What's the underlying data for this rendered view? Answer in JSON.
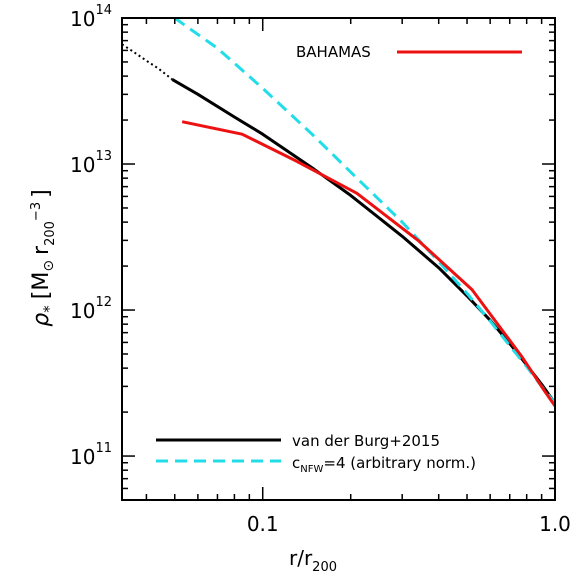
{
  "chart_data": {
    "type": "line",
    "xlabel": {
      "main": "r/r",
      "sub": "200"
    },
    "ylabel": {
      "rho": "ρ",
      "star": "*",
      "bracket_open": "[M",
      "sun": "⊙",
      "r": "r",
      "r_sub": "200",
      "exp": "−3",
      "bracket_close": "]"
    },
    "xscale": "log",
    "yscale": "log",
    "xlim": [
      0.033,
      1.0
    ],
    "ylim": [
      50000000000.0,
      100000000000000.0
    ],
    "xticks": [
      {
        "value": 0.1,
        "label": "0.1"
      },
      {
        "value": 1.0,
        "label": "1.0"
      }
    ],
    "yticks": [
      {
        "value": 100000000000.0,
        "base": "10",
        "exp": "11"
      },
      {
        "value": 1000000000000.0,
        "base": "10",
        "exp": "12"
      },
      {
        "value": 10000000000000.0,
        "base": "10",
        "exp": "13"
      },
      {
        "value": 100000000000000.0,
        "base": "10",
        "exp": "14"
      }
    ],
    "series": [
      {
        "key": "vdb_extrap",
        "color": "#000000",
        "style": "dotted",
        "x": [
          0.033,
          0.036,
          0.04,
          0.044,
          0.049
        ],
        "y": [
          66000000000000.0,
          59000000000000.0,
          51000000000000.0,
          45000000000000.0,
          38000000000000.0
        ]
      },
      {
        "key": "vdb",
        "color": "#000000",
        "style": "solid",
        "x": [
          0.049,
          0.06,
          0.08,
          0.1,
          0.15,
          0.2,
          0.3,
          0.4,
          0.5,
          0.6,
          0.7,
          0.8,
          0.9,
          1.0
        ],
        "y": [
          38000000000000.0,
          30000000000000.0,
          21000000000000.0,
          16000000000000.0,
          9200000000000.0,
          6100000000000.0,
          3200000000000.0,
          1950000000000.0,
          1250000000000.0,
          850000000000.0,
          590000000000.0,
          420000000000.0,
          310000000000.0,
          230000000000.0
        ]
      },
      {
        "key": "nfw",
        "color": "#22dde8",
        "style": "dashed",
        "x": [
          0.05,
          0.07,
          0.1,
          0.15,
          0.2,
          0.3,
          0.4,
          0.5,
          0.6,
          0.7,
          0.8,
          0.9,
          1.0
        ],
        "y": [
          100000000000000.0,
          62000000000000.0,
          33000000000000.0,
          15500000000000.0,
          8800000000000.0,
          4000000000000.0,
          2150000000000.0,
          1300000000000.0,
          840000000000.0,
          570000000000.0,
          410000000000.0,
          300000000000.0,
          230000000000.0
        ]
      },
      {
        "key": "bahamas",
        "color": "#ee1111",
        "style": "solid",
        "x": [
          0.053,
          0.085,
          0.13,
          0.21,
          0.34,
          0.52,
          0.77,
          0.92,
          1.0
        ],
        "y": [
          19500000000000.0,
          16000000000000.0,
          10500000000000.0,
          6300000000000.0,
          3000000000000.0,
          1380000000000.0,
          480000000000.0,
          280000000000.0,
          220000000000.0
        ]
      }
    ],
    "legend": {
      "top": {
        "label": "BAHAMAS",
        "color": "#ee1111",
        "placement": "top-right"
      },
      "bottom": [
        {
          "label": "van der Burg+2015",
          "color": "#000000",
          "style": "solid"
        },
        {
          "label_pre": "c",
          "label_sub": "NFW",
          "label_post": "=4 (arbitrary norm.)",
          "color": "#22dde8",
          "style": "dashed"
        }
      ],
      "bottom_placement": "bottom-left"
    }
  }
}
